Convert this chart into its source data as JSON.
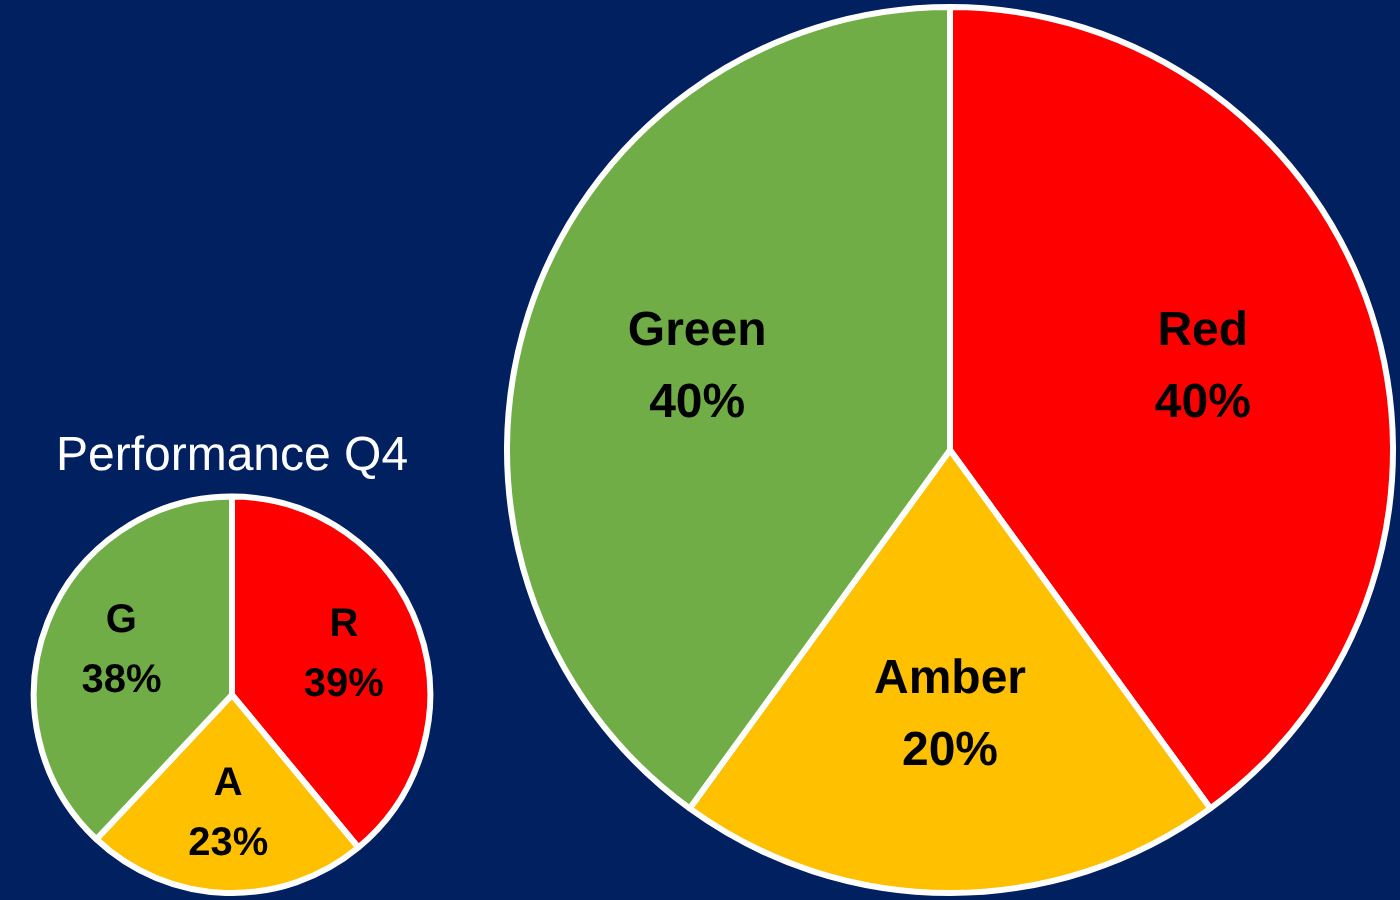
{
  "chart_data": [
    {
      "type": "pie",
      "title": "Performance Q4",
      "categories": [
        "R",
        "A",
        "G"
      ],
      "values": [
        39,
        23,
        38
      ],
      "value_labels": [
        "39%",
        "23%",
        "38%"
      ],
      "colors": [
        "#ff0000",
        "#ffc000",
        "#70ad47"
      ],
      "legend": false
    },
    {
      "type": "pie",
      "categories": [
        "Red",
        "Amber",
        "Green"
      ],
      "values": [
        40,
        20,
        40
      ],
      "value_labels": [
        "40%",
        "20%",
        "40%"
      ],
      "colors": [
        "#ff0000",
        "#ffc000",
        "#70ad47"
      ],
      "legend": false
    }
  ]
}
